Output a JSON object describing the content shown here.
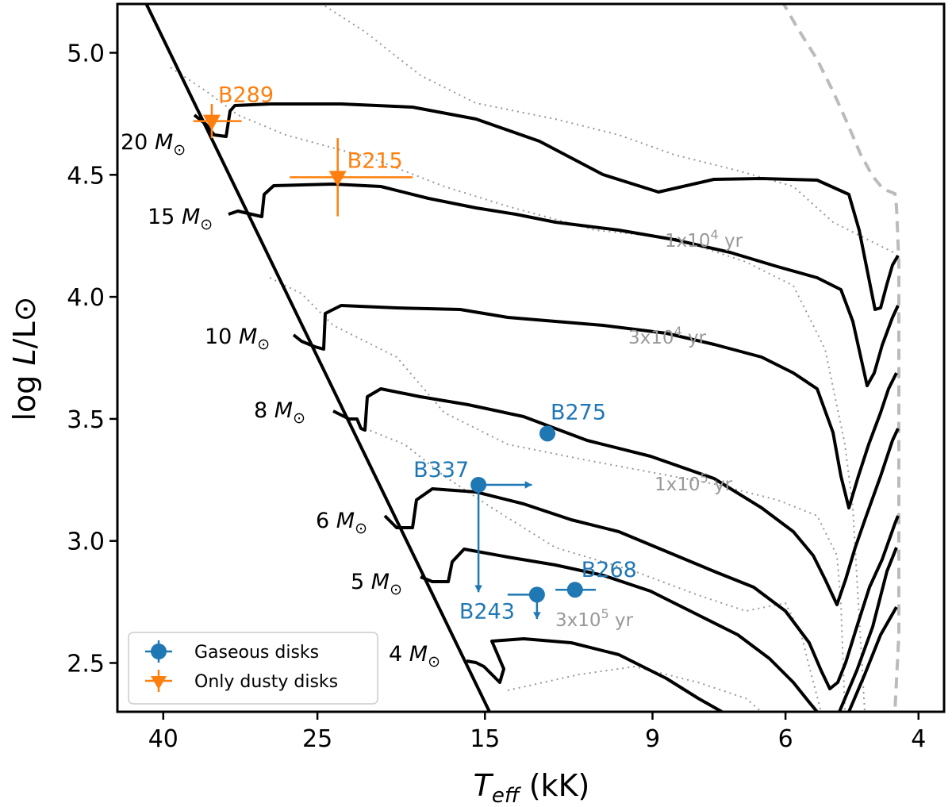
{
  "chart_data": {
    "type": "scatter",
    "title": "",
    "xlabel_var": "T",
    "xlabel_sub": "eff",
    "xlabel_unit": " (kK)",
    "ylabel_pre": "log ",
    "ylabel_var": "L",
    "ylabel_post": "/L⊙",
    "x_scale": "log, reversed",
    "xlim": [
      46,
      3.7
    ],
    "ylim": [
      2.3,
      5.2
    ],
    "x_ticks": [
      40,
      25,
      15,
      9,
      6,
      4
    ],
    "x_tick_labels": [
      "40",
      "25",
      "15",
      "9",
      "6",
      "4"
    ],
    "y_ticks": [
      2.5,
      3.0,
      3.5,
      4.0,
      4.5,
      5.0
    ],
    "y_tick_labels": [
      "2.5",
      "3.0",
      "3.5",
      "4.0",
      "4.5",
      "5.0"
    ],
    "colors": {
      "gaseous": "#1f77b4",
      "dusty": "#ff7f0e",
      "isochrone": "#999999",
      "track": "#000000",
      "dashed": "#bbbbbb"
    },
    "series": [
      {
        "name": "Gaseous disks",
        "marker": "circle",
        "points": [
          {
            "label": "B275",
            "teff": 12.4,
            "logL": 3.44,
            "xerr": 0.3
          },
          {
            "label": "B337",
            "teff": 15.3,
            "logL": 3.23,
            "upper_limit_y": true,
            "lower_limit_x": true,
            "y_to": 2.79,
            "x_to": 13.0
          },
          {
            "label": "B243",
            "teff": 12.8,
            "logL": 2.78,
            "upper_limit_y": true,
            "y_to": 2.68,
            "xerr_low": 1.2
          },
          {
            "label": "B268",
            "teff": 11.4,
            "logL": 2.8,
            "xerr": 0.7
          }
        ]
      },
      {
        "name": "Only dusty disks",
        "marker": "triangle-down",
        "points": [
          {
            "label": "B289",
            "teff": 34.5,
            "logL": 4.72,
            "xerr_low": 2.0,
            "xerr_high": 3.0,
            "yerr": 0.07
          },
          {
            "label": "B215",
            "teff": 23.5,
            "logL": 4.49,
            "xerr_low": 3.7,
            "xerr_high": 4.8,
            "yerr": 0.16
          }
        ]
      }
    ],
    "mass_tracks": [
      {
        "label": "20 M",
        "mass": "20"
      },
      {
        "label": "15 M",
        "mass": "15"
      },
      {
        "label": "10 M",
        "mass": "10"
      },
      {
        "label": "8 M",
        "mass": "8"
      },
      {
        "label": "6 M",
        "mass": "6"
      },
      {
        "label": "5 M",
        "mass": "5"
      },
      {
        "label": "4 M",
        "mass": "4"
      }
    ],
    "isochrones": [
      {
        "label_pre": "1x10",
        "exp": "4",
        "label_post": " yr"
      },
      {
        "label_pre": "3x10",
        "exp": "4",
        "label_post": " yr"
      },
      {
        "label_pre": "1x10",
        "exp": "5",
        "label_post": " yr"
      },
      {
        "label_pre": "3x10",
        "exp": "5",
        "label_post": " yr"
      }
    ],
    "legend": {
      "placement": "lower-left",
      "entries": [
        "Gaseous disks",
        "Only dusty disks"
      ]
    }
  }
}
